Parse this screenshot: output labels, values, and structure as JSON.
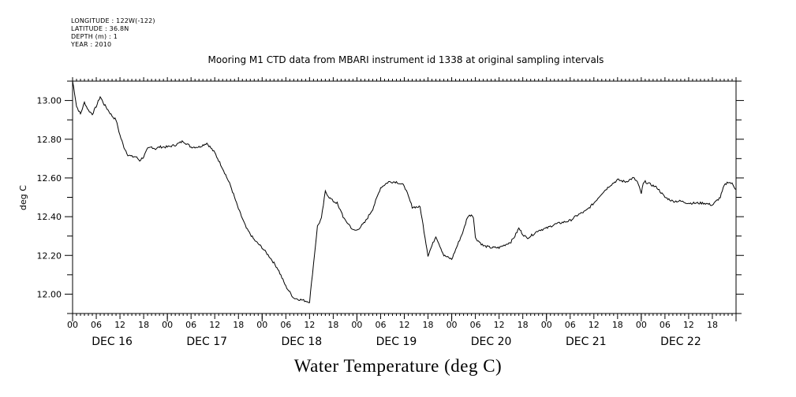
{
  "meta": {
    "longitude": "LONGITUDE : 122W(-122)",
    "latitude": "LATITUDE : 36.8N",
    "depth": "DEPTH (m) : 1",
    "year": "YEAR : 2010"
  },
  "chart_data": {
    "type": "line",
    "title": "Mooring M1 CTD data from MBARI instrument id 1338 at original sampling intervals",
    "xlabel": "Water Temperature (deg C)",
    "ylabel": "deg C",
    "ylim": [
      11.9,
      13.1
    ],
    "yticks": [
      "12.00",
      "12.20",
      "12.40",
      "12.60",
      "12.80",
      "13.00"
    ],
    "xlim_hours": [
      0,
      168
    ],
    "hour_tick_labels": [
      "00",
      "06",
      "12",
      "18",
      "00",
      "06",
      "12",
      "18",
      "00",
      "06",
      "12",
      "18",
      "00",
      "06",
      "12",
      "18",
      "00",
      "06",
      "12",
      "18",
      "00",
      "06",
      "12",
      "18",
      "00",
      "06",
      "12",
      "18"
    ],
    "day_labels": [
      "DEC 16",
      "DEC 17",
      "DEC 18",
      "DEC 19",
      "DEC 20",
      "DEC 21",
      "DEC 22"
    ],
    "grid": false,
    "series": [
      {
        "x_hours": [
          0,
          0.5,
          1,
          2,
          3,
          4,
          5,
          6,
          7,
          8,
          9,
          10,
          11,
          12,
          13,
          14,
          15,
          16,
          17,
          18,
          19,
          20,
          21,
          22,
          23,
          24,
          26,
          28,
          30,
          32,
          34,
          36,
          38,
          40,
          41,
          42,
          43,
          44,
          46,
          48,
          50,
          52,
          54,
          56,
          58,
          60,
          62,
          63,
          64,
          65,
          66,
          67,
          67.5,
          68,
          68.5,
          69,
          69.5,
          70,
          71,
          72,
          73,
          74,
          76,
          78,
          80,
          82,
          84,
          86,
          88,
          90,
          92,
          93,
          94,
          95,
          96,
          97,
          98,
          99,
          100,
          101,
          101.5,
          102,
          103,
          104,
          106,
          108,
          110,
          111,
          112,
          113,
          114,
          115,
          116,
          118,
          120,
          122,
          124,
          126,
          128,
          130,
          132,
          134,
          136,
          138,
          140,
          142,
          143,
          144,
          144.5,
          145,
          146,
          148,
          150,
          152,
          154,
          156,
          158,
          160,
          162,
          164,
          165,
          166,
          167,
          168
        ],
        "values": [
          13.1,
          13.04,
          12.97,
          12.93,
          12.99,
          12.95,
          12.93,
          12.97,
          13.02,
          12.98,
          12.95,
          12.92,
          12.9,
          12.82,
          12.76,
          12.72,
          12.71,
          12.71,
          12.69,
          12.71,
          12.75,
          12.76,
          12.75,
          12.76,
          12.76,
          12.76,
          12.77,
          12.79,
          12.76,
          12.76,
          12.78,
          12.73,
          12.65,
          12.56,
          12.5,
          12.44,
          12.39,
          12.34,
          12.28,
          12.24,
          12.19,
          12.13,
          12.04,
          11.98,
          11.97,
          11.96,
          12.35,
          12.39,
          12.53,
          12.5,
          12.48,
          12.47,
          12.44,
          12.43,
          12.4,
          12.38,
          12.37,
          12.36,
          12.33,
          12.33,
          12.35,
          12.37,
          12.44,
          12.55,
          12.58,
          12.58,
          12.56,
          12.45,
          12.45,
          12.2,
          12.3,
          12.25,
          12.2,
          12.19,
          12.18,
          12.23,
          12.28,
          12.33,
          12.4,
          12.41,
          12.4,
          12.29,
          12.27,
          12.25,
          12.24,
          12.24,
          12.26,
          12.27,
          12.3,
          12.34,
          12.31,
          12.29,
          12.3,
          12.33,
          12.34,
          12.36,
          12.37,
          12.38,
          12.41,
          12.43,
          12.47,
          12.52,
          12.56,
          12.59,
          12.58,
          12.6,
          12.58,
          12.52,
          12.57,
          12.58,
          12.57,
          12.55,
          12.5,
          12.48,
          12.48,
          12.47,
          12.47,
          12.47,
          12.46,
          12.5,
          12.56,
          12.58,
          12.57,
          12.54
        ]
      }
    ]
  }
}
